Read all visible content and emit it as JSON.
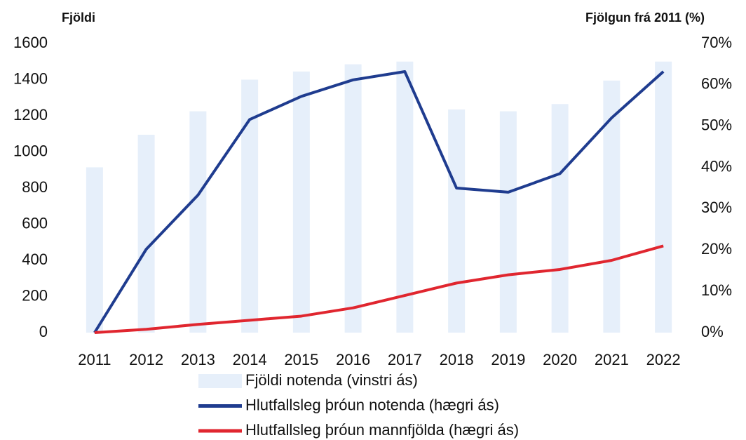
{
  "chart_data": {
    "type": "bar-line",
    "ylabel": "Fjöldi",
    "y2label": "Fjölgun frá 2011 (%)",
    "categories": [
      "2011",
      "2012",
      "2013",
      "2014",
      "2015",
      "2016",
      "2017",
      "2018",
      "2019",
      "2020",
      "2021",
      "2022"
    ],
    "series": [
      {
        "name": "Fjöldi notenda (vinstri ás)",
        "type": "bar",
        "color": "#e6effa",
        "axis": "y",
        "values": [
          915,
          1095,
          1225,
          1400,
          1445,
          1485,
          1500,
          1235,
          1225,
          1265,
          1395,
          1500
        ]
      },
      {
        "name": "Hlutfallsleg þróun notenda (hægri ás)",
        "type": "line",
        "color": "#1f3c8f",
        "axis": "y2",
        "values": [
          0,
          20.2,
          33.3,
          51.6,
          57.2,
          61.2,
          63.2,
          35,
          34,
          38.5,
          52,
          63.2
        ]
      },
      {
        "name": "Hlutfallsleg þróun mannfjölda (hægri ás)",
        "type": "line",
        "color": "#e0262f",
        "axis": "y2",
        "values": [
          0,
          0.8,
          2,
          3,
          4,
          6,
          9,
          12,
          14,
          15.3,
          17.5,
          21
        ]
      }
    ],
    "ylim": [
      0,
      1600
    ],
    "yticks": [
      0,
      200,
      400,
      600,
      800,
      1000,
      1200,
      1400,
      1600
    ],
    "y2lim": [
      0,
      70
    ],
    "y2ticks": [
      {
        "value": 0,
        "label": "0%"
      },
      {
        "value": 10,
        "label": "10%"
      },
      {
        "value": 20,
        "label": "20%"
      },
      {
        "value": 30,
        "label": "30%"
      },
      {
        "value": 40,
        "label": "40%"
      },
      {
        "value": 50,
        "label": "50%"
      },
      {
        "value": 60,
        "label": "60%"
      },
      {
        "value": 70,
        "label": "70%"
      }
    ],
    "grid": false,
    "legend": "bottom"
  }
}
